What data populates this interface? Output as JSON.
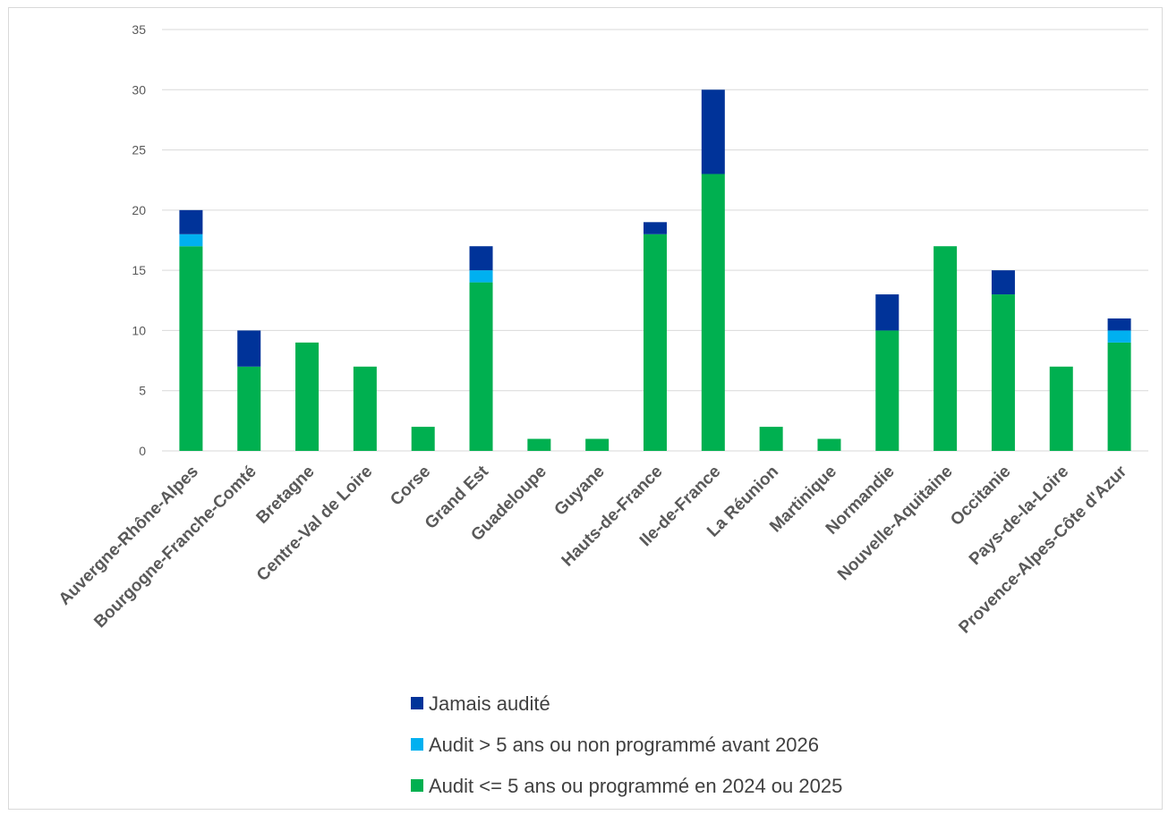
{
  "chart_data": {
    "type": "bar",
    "stacked": true,
    "categories": [
      "Auvergne-Rhône-Alpes",
      "Bourgogne-Franche-Comté",
      "Bretagne",
      "Centre-Val de Loire",
      "Corse",
      "Grand Est",
      "Guadeloupe",
      "Guyane",
      "Hauts-de-France",
      "Ile-de-France",
      "La Réunion",
      "Martinique",
      "Normandie",
      "Nouvelle-Aquitaine",
      "Occitanie",
      "Pays-de-la-Loire",
      "Provence-Alpes-Côte d'Azur"
    ],
    "series": [
      {
        "name": "Audit <= 5 ans ou programmé en 2024 ou 2025",
        "color": "#00b050",
        "values": [
          17,
          7,
          9,
          7,
          2,
          14,
          1,
          1,
          18,
          23,
          2,
          1,
          10,
          17,
          13,
          7,
          9
        ]
      },
      {
        "name": "Audit > 5 ans ou non programmé avant 2026",
        "color": "#00b0f0",
        "values": [
          1,
          0,
          0,
          0,
          0,
          1,
          0,
          0,
          0,
          0,
          0,
          0,
          0,
          0,
          0,
          0,
          1
        ]
      },
      {
        "name": "Jamais audité",
        "color": "#003399",
        "values": [
          2,
          3,
          0,
          0,
          0,
          2,
          0,
          0,
          1,
          7,
          0,
          0,
          3,
          0,
          2,
          0,
          1
        ]
      }
    ],
    "legend_order": [
      "Jamais audité",
      "Audit > 5 ans ou non programmé avant 2026",
      "Audit <= 5 ans ou programmé en 2024 ou 2025"
    ],
    "ylim": [
      0,
      35
    ],
    "yticks": [
      "0",
      "5",
      "10",
      "15",
      "20",
      "25",
      "30",
      "35"
    ],
    "title": "",
    "xlabel": "",
    "ylabel": "",
    "grid": true,
    "legend_position": "bottom"
  }
}
